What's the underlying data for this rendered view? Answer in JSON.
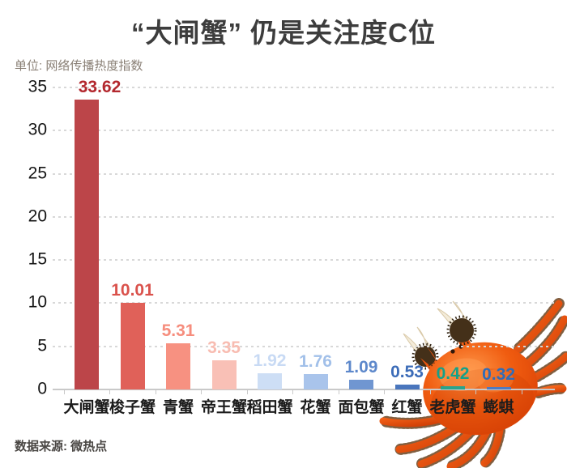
{
  "title": "“大闸蟹” 仍是关注度C位",
  "unit_label": "单位: 网络传播热度指数",
  "source_label": "数据来源: 微热点",
  "decor": {
    "crab_illustration": "cooked-hairy-crab-photo-bottom-right",
    "title_color": "#3d3d3d",
    "accent_red": "#b3282e",
    "grid_color": "#d8d8d8",
    "axis_color": "#c9c9c9"
  },
  "chart_data": {
    "type": "bar",
    "title": "“大闸蟹” 仍是关注度C位",
    "categories": [
      "大闸蟹",
      "梭子蟹",
      "青蟹",
      "帝王蟹",
      "稻田蟹",
      "花蟹",
      "面包蟹",
      "红蟹",
      "老虎蟹",
      "蟛蜞"
    ],
    "values": [
      33.62,
      10.01,
      5.31,
      3.35,
      1.92,
      1.76,
      1.09,
      0.53,
      0.42,
      0.32
    ],
    "value_labels": [
      "33.62",
      "10.01",
      "5.31",
      "3.35",
      "1.92",
      "1.76",
      "1.09",
      "0.53",
      "0.42",
      "0.32"
    ],
    "bar_colors": [
      "#bc4549",
      "#e06159",
      "#f79181",
      "#f9c0b6",
      "#cddef5",
      "#a9c4eb",
      "#7096d1",
      "#4a76bd",
      "#2aa38b",
      "#4f7ac0"
    ],
    "label_colors": [
      "#b3282e",
      "#da524c",
      "#f68d7d",
      "#f8bcb1",
      "#c8daf4",
      "#a2c0e9",
      "#5d88cb",
      "#3c6cb8",
      "#14a189",
      "#2f6cb8"
    ],
    "xlabel": "",
    "ylabel": "网络传播热度指数",
    "ylim": [
      0,
      35
    ],
    "yticks": [
      0,
      5,
      10,
      15,
      20,
      25,
      30,
      35
    ],
    "grid": "horizontal-dashed",
    "legend": "none",
    "value_labels_shown": true
  }
}
